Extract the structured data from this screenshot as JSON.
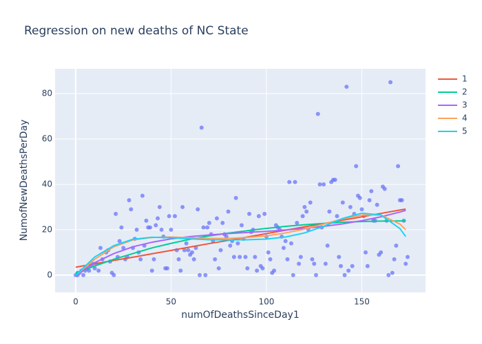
{
  "chart_data": {
    "type": "scatter",
    "title": "Regression on new deaths of NC State",
    "x_label": "numOfDeathsSinceDay1",
    "y_label": "NumofNewDeathsPerDay",
    "xlim": [
      -10.8,
      183.4
    ],
    "ylim": [
      -7.6,
      90.9
    ],
    "xticks": [
      0,
      50,
      100,
      150
    ],
    "yticks": [
      0,
      20,
      40,
      60,
      80
    ],
    "grid": true,
    "points": {
      "color": "#636efa",
      "x": [
        0,
        1,
        1,
        2,
        3,
        4,
        5,
        6,
        7,
        8,
        9,
        10,
        11,
        12,
        13,
        14,
        16,
        17,
        18,
        19,
        20,
        21,
        22,
        23,
        24,
        25,
        26,
        27,
        28,
        29,
        30,
        31,
        32,
        33,
        34,
        35,
        36,
        37,
        38,
        39,
        40,
        41,
        42,
        43,
        44,
        45,
        46,
        47,
        48,
        49,
        50,
        52,
        53,
        54,
        55,
        56,
        57,
        58,
        59,
        60,
        61,
        62,
        63,
        64,
        65,
        66,
        67,
        68,
        69,
        70,
        71,
        72,
        73,
        74,
        75,
        76,
        77,
        78,
        79,
        80,
        81,
        82,
        83,
        84,
        85,
        86,
        87,
        88,
        89,
        90,
        91,
        92,
        93,
        94,
        95,
        96,
        97,
        98,
        99,
        100,
        101,
        102,
        103,
        104,
        105,
        106,
        107,
        108,
        109,
        110,
        111,
        112,
        113,
        114,
        115,
        116,
        117,
        118,
        119,
        120,
        121,
        122,
        123,
        124,
        125,
        126,
        127,
        128,
        129,
        130,
        131,
        132,
        133,
        134,
        135,
        136,
        137,
        138,
        139,
        140,
        141,
        142,
        143,
        144,
        145,
        146,
        147,
        148,
        149,
        150,
        151,
        152,
        153,
        154,
        155,
        156,
        157,
        158,
        159,
        160,
        161,
        162,
        163,
        164,
        165,
        166,
        167,
        168,
        169,
        170,
        171,
        172,
        173,
        174
      ],
      "values": [
        0,
        0,
        1,
        1,
        2,
        0,
        2,
        3,
        2,
        4,
        5,
        3,
        5,
        2,
        12,
        7,
        10,
        11,
        6,
        1,
        0,
        27,
        8,
        15,
        21,
        12,
        7,
        8,
        33,
        29,
        12,
        16,
        20,
        10,
        7,
        35,
        13,
        24,
        21,
        21,
        2,
        7,
        22,
        25,
        30,
        20,
        17,
        3,
        3,
        26,
        20,
        26,
        11,
        7,
        2,
        30,
        11,
        14,
        11,
        9,
        10,
        7,
        12,
        29,
        0,
        65,
        21,
        0,
        21,
        23,
        18,
        15,
        7,
        25,
        3,
        11,
        23,
        18,
        17,
        28,
        13,
        15,
        8,
        34,
        14,
        8,
        22,
        16,
        8,
        3,
        27,
        19,
        20,
        8,
        2,
        26,
        4,
        3,
        27,
        17,
        10,
        7,
        1,
        2,
        22,
        21,
        20,
        17,
        12,
        15,
        7,
        41,
        14,
        0,
        41,
        23,
        5,
        8,
        26,
        30,
        28,
        20,
        32,
        7,
        5,
        0,
        71,
        40,
        21,
        40,
        5,
        13,
        28,
        41,
        42,
        42,
        26,
        8,
        4,
        32,
        0,
        83,
        2,
        30,
        4,
        27,
        48,
        35,
        34,
        29,
        26,
        10,
        4,
        33,
        37,
        24,
        24,
        31,
        9,
        10,
        39,
        38,
        24,
        0,
        85,
        1,
        7,
        13,
        48,
        33,
        33,
        24,
        5,
        8
      ]
    },
    "line_x": [
      0,
      10,
      20,
      30,
      40,
      50,
      60,
      70,
      80,
      90,
      100,
      110,
      120,
      130,
      140,
      150,
      160,
      170,
      173
    ],
    "series": [
      {
        "name": "1",
        "color": "#EF553B",
        "values": [
          3.5,
          5,
          6.5,
          7.9,
          9.4,
          10.9,
          12.4,
          13.9,
          15.3,
          16.8,
          18.3,
          19.8,
          21.3,
          22.7,
          24.2,
          25.7,
          27.2,
          28.7,
          29.1
        ]
      },
      {
        "name": "2",
        "color": "#00cc96",
        "values": [
          1,
          4,
          7,
          9.5,
          12,
          14,
          15.8,
          17.3,
          18.5,
          19.6,
          20.6,
          21.5,
          22.2,
          22.8,
          23.3,
          23.6,
          23.8,
          23.9,
          23.9
        ]
      },
      {
        "name": "3",
        "color": "#ab63fa",
        "values": [
          0,
          5.5,
          9.5,
          12.5,
          14.5,
          16,
          17,
          17.7,
          18.3,
          18.8,
          19.3,
          19.9,
          20.6,
          21.5,
          22.6,
          24,
          25.7,
          27.8,
          28.5
        ]
      },
      {
        "name": "4",
        "color": "#FFA15A",
        "values": [
          0,
          7,
          12.5,
          15.5,
          16.6,
          16.8,
          16.5,
          16.2,
          16.2,
          16.6,
          17.3,
          18.6,
          20.3,
          22.5,
          24.8,
          26.5,
          26.5,
          22.5,
          20
        ]
      },
      {
        "name": "5",
        "color": "#19d3f3",
        "values": [
          0,
          8,
          13,
          15.8,
          16.7,
          16.5,
          16,
          15.6,
          15.5,
          15.6,
          15.9,
          16.8,
          18.6,
          21.5,
          25,
          27.3,
          26.5,
          20.5,
          17
        ]
      }
    ]
  }
}
